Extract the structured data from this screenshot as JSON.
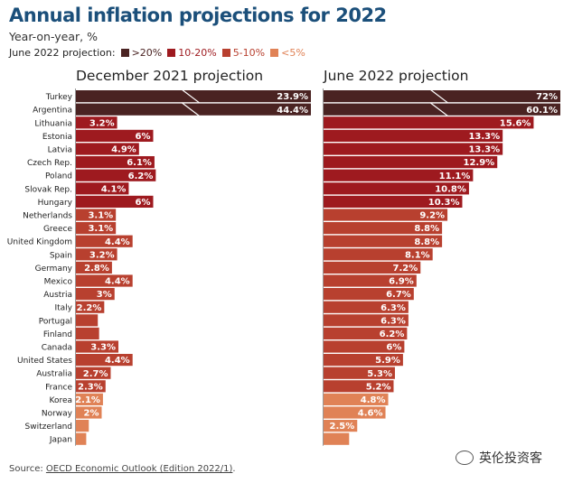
{
  "header": {
    "title": "Annual inflation projections for 2022",
    "subtitle": "Year-on-year, %"
  },
  "legend": {
    "label": "June 2022 projection:",
    "items": [
      {
        "label": ">20%",
        "color": "#4a2322"
      },
      {
        "label": "10-20%",
        "color": "#9e1a1f"
      },
      {
        "label": "5-10%",
        "color": "#b8402f"
      },
      {
        "label": "<5%",
        "color": "#e08256"
      }
    ]
  },
  "footer": {
    "source_prefix": "Source: ",
    "source_link": "OECD Economic Outlook (Edition 2022/1)",
    "source_suffix": ".",
    "watermark": "英伦投资客"
  },
  "colors": {
    "over20": "#4a2322",
    "10to20": "#9e1a1f",
    "5to10": "#b8402f",
    "under5": "#e08256",
    "bar_label": "#ffffff",
    "axis_line": "#999999"
  },
  "chart_data": [
    {
      "type": "bar",
      "orientation": "horizontal",
      "title": "December 2021 projection",
      "categories": [
        "Turkey",
        "Argentina",
        "Lithuania",
        "Estonia",
        "Latvia",
        "Czech Rep.",
        "Poland",
        "Slovak Rep.",
        "Hungary",
        "Netherlands",
        "Greece",
        "United Kingdom",
        "Spain",
        "Germany",
        "Mexico",
        "Austria",
        "Italy",
        "Portugal",
        "Finland",
        "Canada",
        "United States",
        "Australia",
        "France",
        "Korea",
        "Norway",
        "Switzerland",
        "Japan"
      ],
      "values": [
        23.9,
        44.4,
        3.2,
        6,
        4.9,
        6.1,
        6.2,
        4.1,
        6,
        3.1,
        3.1,
        4.4,
        3.2,
        2.8,
        4.4,
        3,
        2.2,
        1.7,
        1.8,
        3.3,
        4.4,
        2.7,
        2.3,
        2.1,
        2,
        1.0,
        0.8
      ],
      "labels": [
        "23.9%",
        "44.4%",
        "3.2%",
        "6%",
        "4.9%",
        "6.1%",
        "6.2%",
        "4.1%",
        "6%",
        "3.1%",
        "3.1%",
        "4.4%",
        "3.2%",
        "2.8%",
        "4.4%",
        "3%",
        "2.2%",
        "",
        "",
        "3.3%",
        "4.4%",
        "2.7%",
        "2.3%",
        "2.1%",
        "2%",
        "",
        ""
      ],
      "truncated": [
        true,
        true,
        false,
        false,
        false,
        false,
        false,
        false,
        false,
        false,
        false,
        false,
        false,
        false,
        false,
        false,
        false,
        false,
        false,
        false,
        false,
        false,
        false,
        false,
        false,
        false,
        false
      ]
    },
    {
      "type": "bar",
      "orientation": "horizontal",
      "title": "June 2022 projection",
      "categories": [
        "Turkey",
        "Argentina",
        "Lithuania",
        "Estonia",
        "Latvia",
        "Czech Rep.",
        "Poland",
        "Slovak Rep.",
        "Hungary",
        "Netherlands",
        "Greece",
        "United Kingdom",
        "Spain",
        "Germany",
        "Mexico",
        "Austria",
        "Italy",
        "Portugal",
        "Finland",
        "Canada",
        "United States",
        "Australia",
        "France",
        "Korea",
        "Norway",
        "Switzerland",
        "Japan"
      ],
      "values": [
        72,
        60.1,
        15.6,
        13.3,
        13.3,
        12.9,
        11.1,
        10.8,
        10.3,
        9.2,
        8.8,
        8.8,
        8.1,
        7.2,
        6.9,
        6.7,
        6.3,
        6.3,
        6.2,
        6,
        5.9,
        5.3,
        5.2,
        4.8,
        4.6,
        2.5,
        1.9
      ],
      "labels": [
        "72%",
        "60.1%",
        "15.6%",
        "13.3%",
        "13.3%",
        "12.9%",
        "11.1%",
        "10.8%",
        "10.3%",
        "9.2%",
        "8.8%",
        "8.8%",
        "8.1%",
        "7.2%",
        "6.9%",
        "6.7%",
        "6.3%",
        "6.3%",
        "6.2%",
        "6%",
        "5.9%",
        "5.3%",
        "5.2%",
        "4.8%",
        "4.6%",
        "2.5%",
        ""
      ],
      "truncated": [
        true,
        true,
        false,
        false,
        false,
        false,
        false,
        false,
        false,
        false,
        false,
        false,
        false,
        false,
        false,
        false,
        false,
        false,
        false,
        false,
        false,
        false,
        false,
        false,
        false,
        false,
        false
      ]
    }
  ]
}
